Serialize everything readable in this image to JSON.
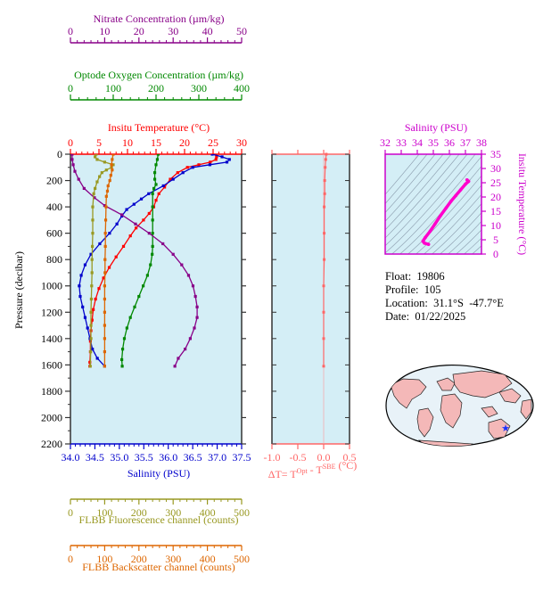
{
  "chart_data": [
    {
      "type": "line",
      "title": "",
      "y_axis": {
        "label": "Pressure (decibar)",
        "range": [
          0,
          2200
        ],
        "ticks": [
          0,
          200,
          400,
          600,
          800,
          1000,
          1200,
          1400,
          1600,
          1800,
          2000,
          2200
        ],
        "inverted": true
      },
      "axes": [
        {
          "key": "temp",
          "label": "Insitu Temperature (°C)",
          "position": "top",
          "color": "#ff0000",
          "range": [
            0,
            30
          ],
          "ticks": [
            0,
            5,
            10,
            15,
            20,
            25,
            30
          ]
        },
        {
          "key": "sal",
          "label": "Salinity (PSU)",
          "position": "bottom",
          "color": "#0000cc",
          "range": [
            34.0,
            37.5
          ],
          "ticks": [
            "34.0",
            "34.5",
            "35.0",
            "35.5",
            "36.0",
            "36.5",
            "37.0",
            "37.5"
          ]
        },
        {
          "key": "oxy",
          "label": "Optode Oxygen Concentration (µm/kg)",
          "position": "top",
          "color": "#008800",
          "range": [
            0,
            400
          ],
          "ticks": [
            0,
            100,
            200,
            300,
            400
          ]
        },
        {
          "key": "nit",
          "label": "Nitrate Concentration (µm/kg)",
          "position": "top",
          "color": "#880088",
          "range": [
            0,
            50
          ],
          "ticks": [
            0,
            10,
            20,
            30,
            40,
            50
          ]
        },
        {
          "key": "flu",
          "label": "FLBB Fluorescence channel (counts)",
          "position": "bottom",
          "color": "#999922",
          "range": [
            0,
            500
          ],
          "ticks": [
            0,
            100,
            200,
            300,
            400,
            500
          ]
        },
        {
          "key": "bb",
          "label": "FLBB Backscatter channel (counts)",
          "position": "bottom",
          "color": "#dd6600",
          "range": [
            0,
            500
          ],
          "ticks": [
            0,
            100,
            200,
            300,
            400,
            500
          ]
        }
      ],
      "series": [
        {
          "axis": "temp",
          "color": "#ff0000",
          "points": [
            [
              25.5,
              0
            ],
            [
              25.6,
              20
            ],
            [
              25.5,
              40
            ],
            [
              24.5,
              60
            ],
            [
              22.5,
              80
            ],
            [
              20.5,
              100
            ],
            [
              18.8,
              140
            ],
            [
              17.5,
              190
            ],
            [
              16.5,
              250
            ],
            [
              15.5,
              300
            ],
            [
              15.0,
              350
            ],
            [
              14.6,
              400
            ],
            [
              13.8,
              450
            ],
            [
              12.8,
              500
            ],
            [
              11.5,
              560
            ],
            [
              10.5,
              620
            ],
            [
              9.3,
              700
            ],
            [
              8.0,
              780
            ],
            [
              6.8,
              860
            ],
            [
              5.8,
              940
            ],
            [
              5.0,
              1020
            ],
            [
              4.4,
              1100
            ],
            [
              4.0,
              1180
            ],
            [
              3.8,
              1260
            ],
            [
              3.6,
              1340
            ],
            [
              3.5,
              1420
            ],
            [
              3.5,
              1500
            ],
            [
              3.4,
              1580
            ],
            [
              3.4,
              1610
            ]
          ]
        },
        {
          "axis": "sal",
          "color": "#0000cc",
          "points": [
            [
              36.9,
              0
            ],
            [
              37.1,
              20
            ],
            [
              37.25,
              40
            ],
            [
              37.2,
              60
            ],
            [
              36.85,
              80
            ],
            [
              36.5,
              100
            ],
            [
              36.3,
              140
            ],
            [
              36.1,
              190
            ],
            [
              35.9,
              240
            ],
            [
              35.6,
              300
            ],
            [
              35.45,
              340
            ],
            [
              35.3,
              380
            ],
            [
              35.15,
              420
            ],
            [
              35.05,
              470
            ],
            [
              34.95,
              530
            ],
            [
              34.8,
              600
            ],
            [
              34.6,
              680
            ],
            [
              34.42,
              760
            ],
            [
              34.3,
              840
            ],
            [
              34.22,
              920
            ],
            [
              34.18,
              1000
            ],
            [
              34.2,
              1080
            ],
            [
              34.25,
              1160
            ],
            [
              34.3,
              1240
            ],
            [
              34.35,
              1320
            ],
            [
              34.4,
              1400
            ],
            [
              34.45,
              1480
            ],
            [
              34.55,
              1550
            ],
            [
              34.7,
              1610
            ]
          ]
        },
        {
          "axis": "oxy",
          "color": "#008800",
          "points": [
            [
              205,
              0
            ],
            [
              203,
              40
            ],
            [
              200,
              80
            ],
            [
              197,
              140
            ],
            [
              197,
              190
            ],
            [
              200,
              230
            ],
            [
              195,
              260
            ],
            [
              192,
              300
            ],
            [
              192,
              400
            ],
            [
              192,
              500
            ],
            [
              192,
              600
            ],
            [
              192,
              700
            ],
            [
              191,
              760
            ],
            [
              187,
              840
            ],
            [
              180,
              920
            ],
            [
              170,
              1000
            ],
            [
              160,
              1080
            ],
            [
              150,
              1160
            ],
            [
              140,
              1240
            ],
            [
              132,
              1320
            ],
            [
              126,
              1400
            ],
            [
              122,
              1480
            ],
            [
              120,
              1560
            ],
            [
              121,
              1610
            ]
          ]
        },
        {
          "axis": "nit",
          "color": "#880088",
          "points": [
            [
              0.5,
              0
            ],
            [
              0.5,
              40
            ],
            [
              0.8,
              80
            ],
            [
              1.3,
              130
            ],
            [
              2.4,
              190
            ],
            [
              4.0,
              260
            ],
            [
              7.0,
              330
            ],
            [
              10,
              390
            ],
            [
              15,
              460
            ],
            [
              19,
              530
            ],
            [
              23,
              600
            ],
            [
              27,
              680
            ],
            [
              30,
              760
            ],
            [
              32.5,
              840
            ],
            [
              34.5,
              920
            ],
            [
              35.8,
              1000
            ],
            [
              36.5,
              1080
            ],
            [
              37,
              1160
            ],
            [
              37,
              1240
            ],
            [
              36.2,
              1320
            ],
            [
              35,
              1400
            ],
            [
              33.5,
              1480
            ],
            [
              31.5,
              1550
            ],
            [
              30.5,
              1610
            ]
          ]
        },
        {
          "axis": "flu",
          "color": "#999922",
          "points": [
            [
              75,
              0
            ],
            [
              72,
              20
            ],
            [
              78,
              40
            ],
            [
              100,
              60
            ],
            [
              125,
              80
            ],
            [
              120,
              100
            ],
            [
              105,
              120
            ],
            [
              92,
              140
            ],
            [
              85,
              170
            ],
            [
              78,
              210
            ],
            [
              72,
              260
            ],
            [
              68,
              300
            ],
            [
              65,
              400
            ],
            [
              65,
              500
            ],
            [
              65,
              600
            ],
            [
              64,
              700
            ],
            [
              63,
              800
            ],
            [
              63,
              900
            ],
            [
              62,
              1000
            ],
            [
              61,
              1100
            ],
            [
              60,
              1200
            ],
            [
              60,
              1300
            ],
            [
              60,
              1400
            ],
            [
              59,
              1500
            ],
            [
              58,
              1610
            ]
          ]
        },
        {
          "axis": "bb",
          "color": "#dd6600",
          "points": [
            [
              125,
              0
            ],
            [
              122,
              40
            ],
            [
              120,
              80
            ],
            [
              122,
              120
            ],
            [
              118,
              160
            ],
            [
              115,
              200
            ],
            [
              110,
              240
            ],
            [
              108,
              280
            ],
            [
              105,
              320
            ],
            [
              104,
              400
            ],
            [
              103,
              500
            ],
            [
              102,
              600
            ],
            [
              102,
              700
            ],
            [
              101,
              800
            ],
            [
              101,
              900
            ],
            [
              100,
              1000
            ],
            [
              100,
              1100
            ],
            [
              100,
              1200
            ],
            [
              100,
              1300
            ],
            [
              100,
              1400
            ],
            [
              100,
              1500
            ],
            [
              100,
              1610
            ]
          ]
        }
      ]
    },
    {
      "type": "line",
      "title": "",
      "x_axis": {
        "label": "ΔT= T^Opt - T^SBE (°C)",
        "range": [
          -1.0,
          0.5
        ],
        "ticks": [
          "-1.0",
          "-0.5",
          "0.0",
          "0.5"
        ],
        "color": "#ff6666"
      },
      "y_axis": {
        "range": [
          0,
          2200
        ],
        "inverted": true
      },
      "series": [
        {
          "color": "#ff6666",
          "points": [
            [
              0.05,
              0
            ],
            [
              0.04,
              40
            ],
            [
              0.03,
              100
            ],
            [
              0.02,
              200
            ],
            [
              0.02,
              300
            ],
            [
              0.01,
              400
            ],
            [
              0.01,
              600
            ],
            [
              0.01,
              800
            ],
            [
              0.0,
              1000
            ],
            [
              0.0,
              1200
            ],
            [
              0.0,
              1400
            ],
            [
              0.0,
              1610
            ]
          ]
        }
      ]
    },
    {
      "type": "scatter",
      "title": "",
      "x_axis": {
        "label": "Salinity (PSU)",
        "range": [
          32,
          38
        ],
        "ticks": [
          32,
          33,
          34,
          35,
          36,
          37,
          38
        ],
        "position": "top"
      },
      "y_axis": {
        "label": "Insitu Temperature (°C)",
        "range": [
          0,
          35
        ],
        "ticks": [
          0,
          5,
          10,
          15,
          20,
          25,
          30,
          35
        ],
        "position": "right"
      },
      "color": "#ff00cc",
      "series": [
        {
          "points": [
            [
              34.7,
              3.4
            ],
            [
              34.45,
              3.8
            ],
            [
              34.35,
              4.5
            ],
            [
              34.5,
              5.8
            ],
            [
              34.8,
              8.0
            ],
            [
              35.1,
              10.5
            ],
            [
              35.45,
              13.5
            ],
            [
              35.8,
              16.2
            ],
            [
              36.1,
              18.5
            ],
            [
              36.4,
              20.5
            ],
            [
              36.7,
              22.5
            ],
            [
              37.0,
              24.5
            ],
            [
              37.2,
              25.5
            ],
            [
              37.1,
              26.0
            ]
          ]
        }
      ]
    }
  ],
  "float_info": {
    "float": "Float:  19806",
    "profile": "Profile:  105",
    "location": "Location:  31.1°S  -47.7°E",
    "date": "Date:  01/22/2025"
  },
  "map": {
    "icon": "world-map-icon",
    "marker": "float-location-marker"
  }
}
